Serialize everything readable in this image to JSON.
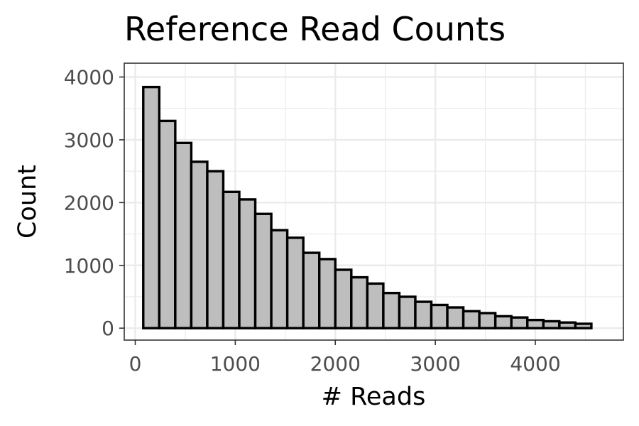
{
  "chart_data": {
    "type": "bar",
    "title": "Reference Read Counts",
    "xlabel": "# Reads",
    "ylabel": "Count",
    "xlim": [
      -110,
      4880
    ],
    "ylim": [
      -190,
      4220
    ],
    "x_ticks": [
      0,
      1000,
      2000,
      3000,
      4000
    ],
    "y_ticks": [
      0,
      1000,
      2000,
      3000,
      4000
    ],
    "x_tick_labels": [
      "0",
      "1000",
      "2000",
      "3000",
      "4000"
    ],
    "y_tick_labels": [
      "0",
      "1000",
      "2000",
      "3000",
      "4000"
    ],
    "grid": true,
    "bin_width": 160,
    "bins": [
      {
        "x0": 80,
        "x1": 240,
        "count": 3840
      },
      {
        "x0": 240,
        "x1": 400,
        "count": 3300
      },
      {
        "x0": 400,
        "x1": 560,
        "count": 2950
      },
      {
        "x0": 560,
        "x1": 720,
        "count": 2650
      },
      {
        "x0": 720,
        "x1": 880,
        "count": 2500
      },
      {
        "x0": 880,
        "x1": 1040,
        "count": 2170
      },
      {
        "x0": 1040,
        "x1": 1200,
        "count": 2050
      },
      {
        "x0": 1200,
        "x1": 1360,
        "count": 1820
      },
      {
        "x0": 1360,
        "x1": 1520,
        "count": 1560
      },
      {
        "x0": 1520,
        "x1": 1680,
        "count": 1440
      },
      {
        "x0": 1680,
        "x1": 1840,
        "count": 1200
      },
      {
        "x0": 1840,
        "x1": 2000,
        "count": 1100
      },
      {
        "x0": 2000,
        "x1": 2160,
        "count": 930
      },
      {
        "x0": 2160,
        "x1": 2320,
        "count": 810
      },
      {
        "x0": 2320,
        "x1": 2480,
        "count": 710
      },
      {
        "x0": 2480,
        "x1": 2640,
        "count": 560
      },
      {
        "x0": 2640,
        "x1": 2800,
        "count": 500
      },
      {
        "x0": 2800,
        "x1": 2960,
        "count": 420
      },
      {
        "x0": 2960,
        "x1": 3120,
        "count": 370
      },
      {
        "x0": 3120,
        "x1": 3280,
        "count": 330
      },
      {
        "x0": 3280,
        "x1": 3440,
        "count": 270
      },
      {
        "x0": 3440,
        "x1": 3600,
        "count": 240
      },
      {
        "x0": 3600,
        "x1": 3760,
        "count": 190
      },
      {
        "x0": 3760,
        "x1": 3920,
        "count": 170
      },
      {
        "x0": 3920,
        "x1": 4080,
        "count": 130
      },
      {
        "x0": 4080,
        "x1": 4240,
        "count": 110
      },
      {
        "x0": 4240,
        "x1": 4400,
        "count": 90
      },
      {
        "x0": 4400,
        "x1": 4560,
        "count": 70
      }
    ],
    "colors": {
      "bar_fill": "#bebebe",
      "bar_stroke": "#000000",
      "grid": "#ebebeb",
      "panel_border": "#333333",
      "tick_label": "#4d4d4d"
    }
  }
}
